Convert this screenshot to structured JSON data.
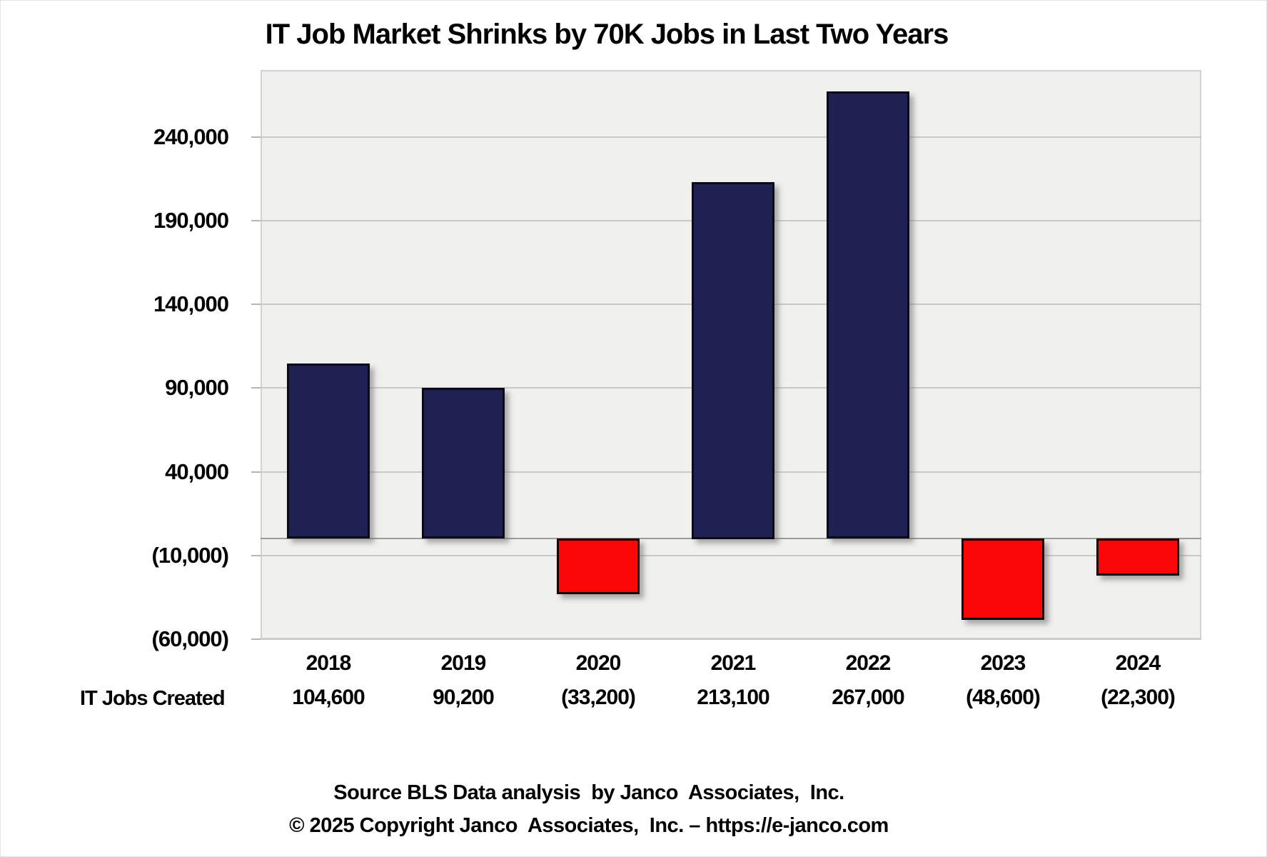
{
  "title": "IT Job Market Shrinks by 70K Jobs in Last Two Years",
  "chart_data": {
    "type": "bar",
    "title": "IT Job Market Shrinks by 70K Jobs in Last Two Years",
    "categories": [
      "2018",
      "2019",
      "2020",
      "2021",
      "2022",
      "2023",
      "2024"
    ],
    "values": [
      104600,
      90200,
      -33200,
      213100,
      267000,
      -48600,
      -22300
    ],
    "value_labels": [
      "104,600",
      "90,200",
      "(33,200)",
      "213,100",
      "267,000",
      "(48,600)",
      "(22,300)"
    ],
    "row_label": "IT Jobs Created",
    "xlabel": "",
    "ylabel": "",
    "ylim": [
      -60000,
      280000
    ],
    "y_ticks": [
      240000,
      190000,
      140000,
      90000,
      40000,
      -10000,
      -60000
    ],
    "y_tick_labels": [
      "240,000",
      "190,000",
      "140,000",
      "90,000",
      "40,000",
      "(10,000)",
      "(60,000)"
    ],
    "grid": true,
    "legend": "none",
    "colors": {
      "positive_fill": "#1f2152",
      "positive_border": "#0a0a18",
      "negative_fill": "#fa0707",
      "negative_border": "#1a0000",
      "plot_background": "#f0f0ef",
      "gridline": "#c9c9c9",
      "zero_axis_line": "#9c9c9c",
      "text": "#000000"
    }
  },
  "footer": {
    "source_line": "Source BLS Data analysis  by Janco  Associates,  Inc.",
    "copyright_line": "© 2025 Copyright Janco  Associates,  Inc. – https://e-janco.com"
  }
}
